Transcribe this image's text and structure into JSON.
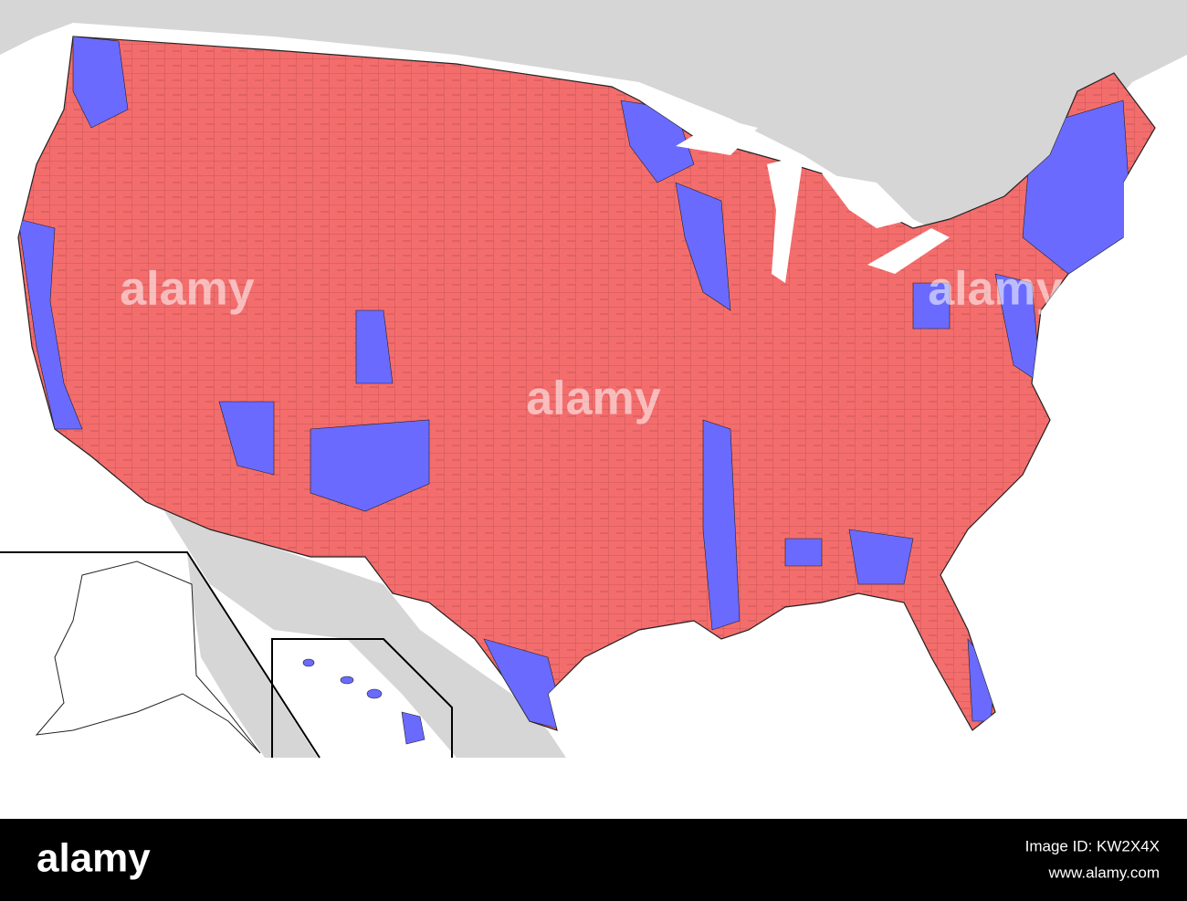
{
  "watermarks": [
    "alamy",
    "alamy",
    "alamy"
  ],
  "footer": {
    "logo": "alamy",
    "image_id": "Image ID: KW2X4X",
    "url": "www.alamy.com"
  }
}
